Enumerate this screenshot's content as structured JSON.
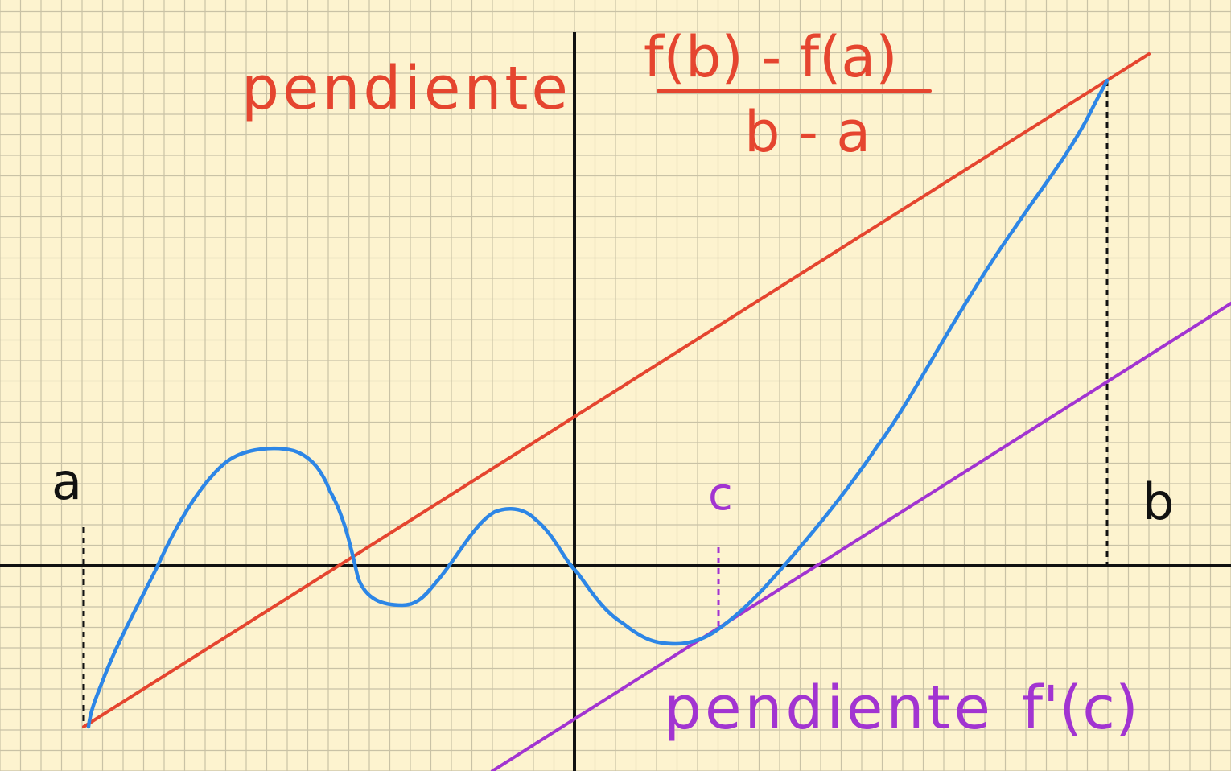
{
  "labels": {
    "a": "a",
    "b": "b",
    "c": "c",
    "secant_word": "pendiente",
    "secant_numerator": "f(b) - f(a)",
    "secant_denominator": "b - a",
    "tangent_word": "pendiente",
    "tangent_expr": "f'(c)"
  },
  "colors": {
    "paper": "#fdf3cf",
    "grid": "#c9c2a6",
    "axis": "#111111",
    "curve": "#2d86e6",
    "secant": "#e5452f",
    "tangent": "#a234d1",
    "ink": "#111111"
  }
}
